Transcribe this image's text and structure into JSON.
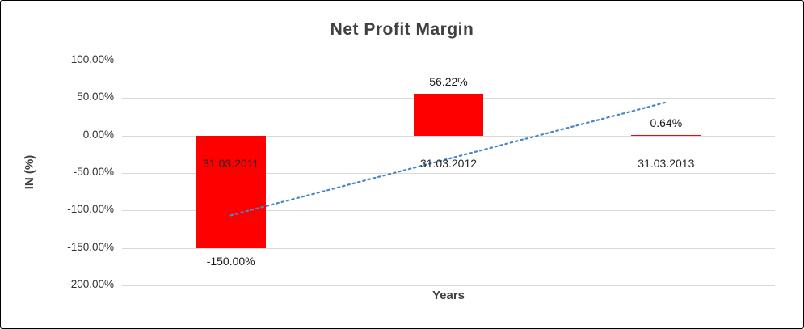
{
  "chart_data": {
    "type": "bar",
    "title": "Net Profit Margin",
    "xlabel": "Years",
    "ylabel": "IN (%)",
    "categories": [
      "31.03.2011",
      "31.03.2012",
      "31.03.2013"
    ],
    "values": [
      -150.0,
      56.22,
      0.64
    ],
    "value_labels": [
      "-150.00%",
      "56.22%",
      "0.64%"
    ],
    "ylim": [
      -200,
      100
    ],
    "ytick_step": 50,
    "ytick_labels": [
      "100.00%",
      "50.00%",
      "0.00%",
      "-50.00%",
      "-100.00%",
      "-150.00%",
      "-200.00%"
    ],
    "grid": true,
    "legend": "none",
    "bar_color": "#ff0000",
    "trendline": {
      "style": "dotted",
      "color": "#4a86c5",
      "start_value": -106.4,
      "end_value": 44.3
    }
  }
}
